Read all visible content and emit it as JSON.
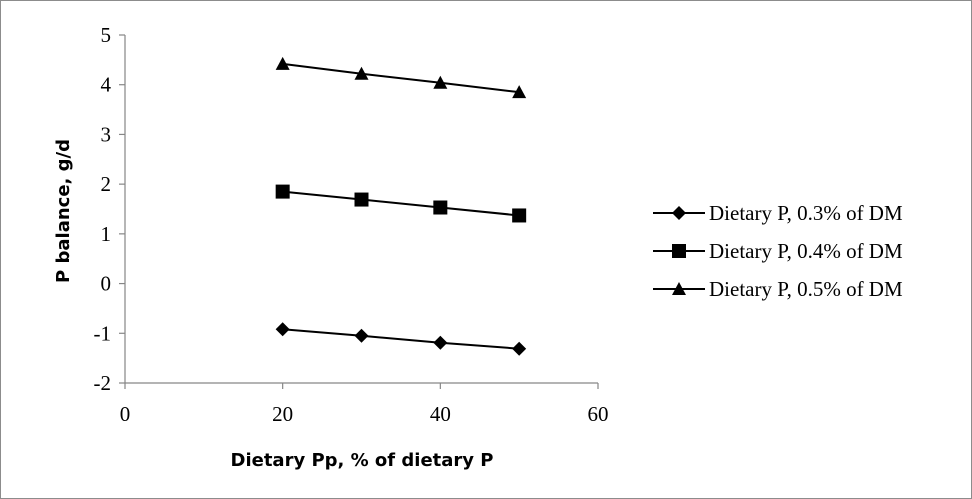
{
  "chart_data": {
    "type": "line",
    "title": "",
    "xlabel": "Dietary Pp, % of dietary P",
    "ylabel": "P balance, g/d",
    "x": [
      20,
      30,
      40,
      50
    ],
    "xlim": [
      0,
      60
    ],
    "ylim": [
      -2,
      5
    ],
    "x_ticks": [
      "0",
      "20",
      "40",
      "60"
    ],
    "y_ticks": [
      "5",
      "4",
      "3",
      "2",
      "1",
      "0",
      "-1",
      "-2"
    ],
    "grid": false,
    "legend_position": "right",
    "series": [
      {
        "name": "Dietary P, 0.3% of DM",
        "marker": "diamond",
        "values": [
          -0.92,
          -1.05,
          -1.19,
          -1.31
        ]
      },
      {
        "name": "Dietary P, 0.4% of DM",
        "marker": "square",
        "values": [
          1.85,
          1.69,
          1.53,
          1.37
        ]
      },
      {
        "name": "Dietary P, 0.5% of DM",
        "marker": "triangle",
        "values": [
          4.42,
          4.22,
          4.04,
          3.85
        ]
      }
    ],
    "colors": {
      "line": "#000000",
      "axis": "#868686"
    }
  }
}
